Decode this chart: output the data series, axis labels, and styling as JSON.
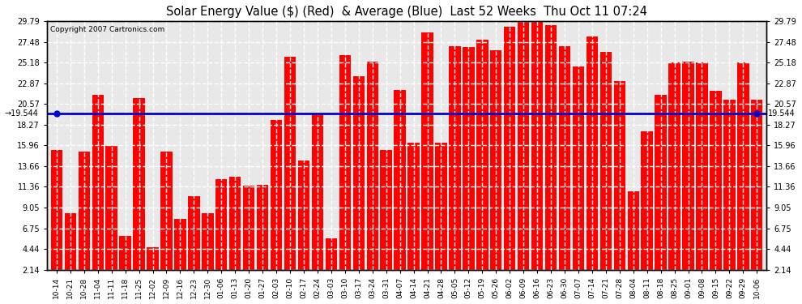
{
  "title": "Solar Energy Value ($) (Red)  & Average (Blue)  Last 52 Weeks  Thu Oct 11 07:24",
  "copyright": "Copyright 2007 Cartronics.com",
  "average": 19.544,
  "ylim": [
    2.14,
    29.79
  ],
  "yticks": [
    2.14,
    4.44,
    6.75,
    9.05,
    11.36,
    13.66,
    15.96,
    18.27,
    20.57,
    22.87,
    25.18,
    27.48,
    29.79
  ],
  "bar_color": "#ff0000",
  "avg_line_color": "#0000cc",
  "background_color": "#ffffff",
  "plot_bg_color": "#e8e8e8",
  "grid_color": "#ffffff",
  "categories": [
    "10-14",
    "10-21",
    "10-28",
    "11-04",
    "11-11",
    "11-18",
    "11-25",
    "12-02",
    "12-09",
    "12-16",
    "12-23",
    "12-30",
    "01-06",
    "01-13",
    "01-20",
    "01-27",
    "02-03",
    "02-10",
    "02-17",
    "02-24",
    "03-03",
    "03-10",
    "03-17",
    "03-24",
    "03-31",
    "04-07",
    "04-14",
    "04-21",
    "04-28",
    "05-05",
    "05-12",
    "05-19",
    "05-26",
    "06-02",
    "06-09",
    "06-16",
    "06-23",
    "06-30",
    "07-07",
    "07-14",
    "07-21",
    "07-28",
    "08-04",
    "08-11",
    "08-18",
    "08-25",
    "09-01",
    "09-08",
    "09-15",
    "09-22",
    "09-29",
    "10-06"
  ],
  "values": [
    15.473,
    8.454,
    15.319,
    21.541,
    15.905,
    5.866,
    21.194,
    4.653,
    15.278,
    7.815,
    10.305,
    8.389,
    12.172,
    12.51,
    11.529,
    11.561,
    18.78,
    25.828,
    14.263,
    19.4,
    5.591,
    26.031,
    23.686,
    25.241,
    15.483,
    22.155,
    16.289,
    28.48,
    16.269,
    27.005,
    26.86,
    27.705,
    26.56,
    29.136,
    29.786,
    30.541,
    29.335,
    27.013,
    24.764,
    28.09,
    26.354,
    23.095,
    10.874,
    17.558,
    21.574,
    25.21,
    25.246,
    25.14,
    21.987,
    21.062,
    25.14,
    21.062
  ],
  "left_label": "19.544",
  "right_label": "19.544"
}
